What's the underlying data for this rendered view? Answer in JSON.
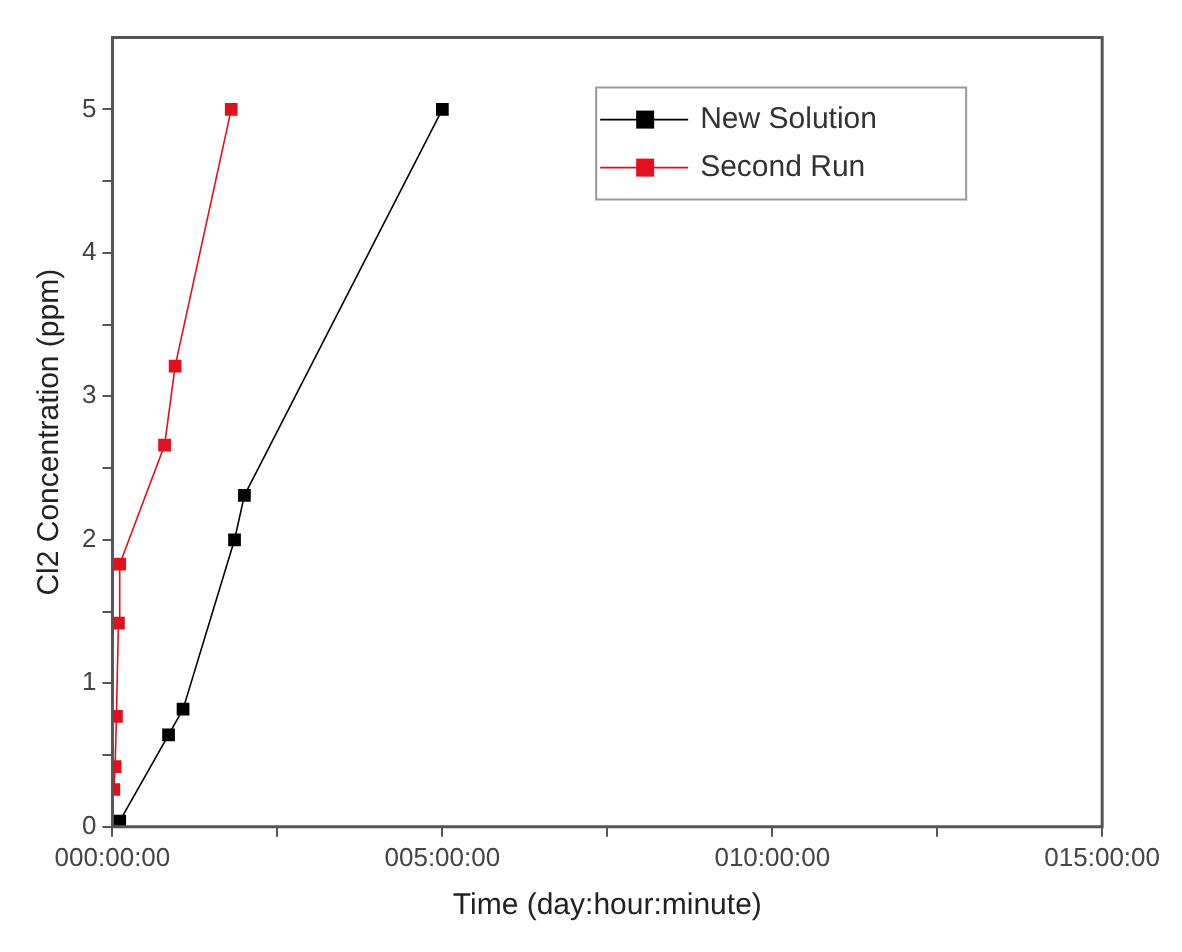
{
  "chart_data": {
    "type": "line",
    "xlabel": "Time (day:hour:minute)",
    "ylabel": "Cl2 Concentration (ppm)",
    "series": [
      {
        "name": "New Solution",
        "color": "#000000",
        "x": [
          0.11,
          0.85,
          1.07,
          1.85,
          2.0,
          5.0
        ],
        "values": [
          0.04,
          0.64,
          0.82,
          2.0,
          2.31,
          5.0
        ]
      },
      {
        "name": "Second Run",
        "color": "#e0101e",
        "x": [
          0.02,
          0.04,
          0.06,
          0.09,
          0.11,
          0.79,
          0.95,
          1.8
        ],
        "values": [
          0.26,
          0.42,
          0.77,
          1.42,
          1.83,
          2.66,
          3.21,
          5.0
        ]
      }
    ],
    "xlim": [
      0,
      15
    ],
    "xticks": [
      {
        "value": 0,
        "label": "000:00:00"
      },
      {
        "value": 2.5,
        "label": null
      },
      {
        "value": 5,
        "label": "005:00:00"
      },
      {
        "value": 7.5,
        "label": null
      },
      {
        "value": 10,
        "label": "010:00:00"
      },
      {
        "value": 12.5,
        "label": null
      },
      {
        "value": 15,
        "label": "015:00:00"
      }
    ],
    "ylim": [
      0,
      5.5
    ],
    "yticks": [
      0,
      {
        "value": 0.5,
        "label": null
      },
      1,
      {
        "value": 1.5,
        "label": null
      },
      2,
      {
        "value": 2.5,
        "label": null
      },
      3,
      {
        "value": 3.5,
        "label": null
      },
      4,
      {
        "value": 4.5,
        "label": null
      },
      5
    ],
    "grid": false,
    "legend": "top right",
    "marker": "square",
    "line_style": "solid"
  }
}
